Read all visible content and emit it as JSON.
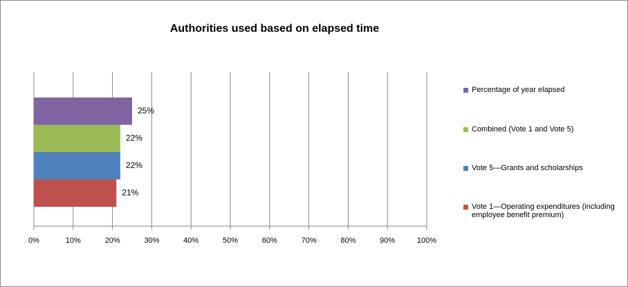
{
  "chart_data": {
    "type": "bar",
    "orientation": "horizontal",
    "title": "Authorities used based on elapsed time",
    "categories": [
      null
    ],
    "series": [
      {
        "name": "Vote 1—Operating expenditures (including employee benefit premium)",
        "color": "#c0504d",
        "values": [
          21
        ],
        "value_labels": [
          "21%"
        ]
      },
      {
        "name": "Vote 5—Grants and scholarships",
        "color": "#4f81bd",
        "values": [
          22
        ],
        "value_labels": [
          "22%"
        ]
      },
      {
        "name": "Combined (Vote 1 and Vote 5)",
        "color": "#9bbb59",
        "values": [
          22
        ],
        "value_labels": [
          "22%"
        ]
      },
      {
        "name": "Percentage of year elapsed",
        "color": "#8064a2",
        "values": [
          25
        ],
        "value_labels": [
          "25%"
        ]
      }
    ],
    "xlim": [
      0,
      100
    ],
    "xticks": [
      {
        "value": 0,
        "label": "0%"
      },
      {
        "value": 10,
        "label": "10%"
      },
      {
        "value": 20,
        "label": "20%"
      },
      {
        "value": 30,
        "label": "30%"
      },
      {
        "value": 40,
        "label": "40%"
      },
      {
        "value": 50,
        "label": "50%"
      },
      {
        "value": 60,
        "label": "60%"
      },
      {
        "value": 70,
        "label": "70%"
      },
      {
        "value": 80,
        "label": "80%"
      },
      {
        "value": 90,
        "label": "90%"
      },
      {
        "value": 100,
        "label": "100%"
      }
    ],
    "grid": true,
    "legend": "right"
  }
}
